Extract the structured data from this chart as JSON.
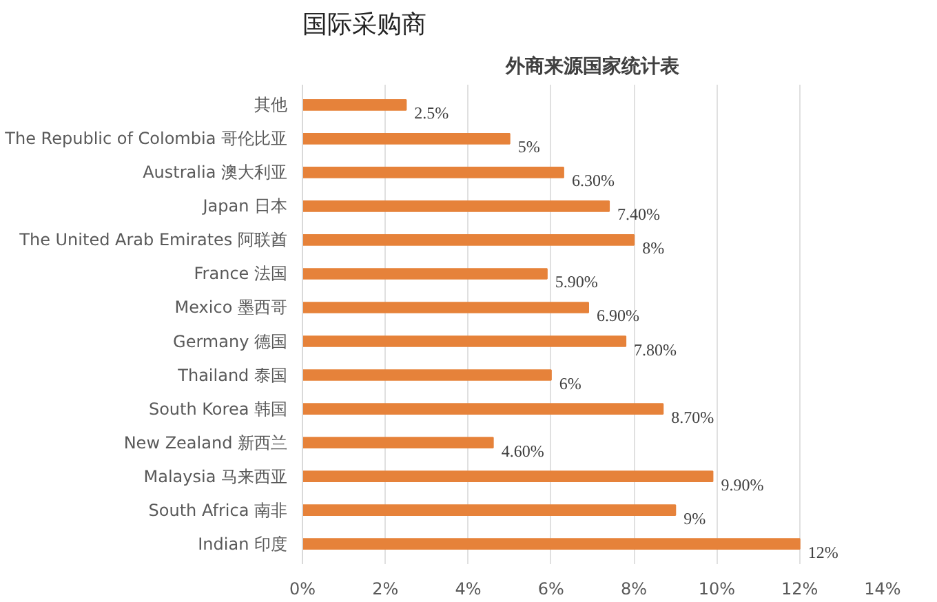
{
  "chart_data": {
    "type": "bar",
    "orientation": "horizontal",
    "title": "国际采购商",
    "subtitle": "外商来源国家统计表",
    "categories": [
      "其他",
      "The Republic of Colombia 哥伦比亚",
      "Australia 澳大利亚",
      "Japan 日本",
      "The United Arab Emirates 阿联酋",
      "France 法国",
      "Mexico 墨西哥",
      "Germany 德国",
      "Thailand 泰国",
      "South Korea 韩国",
      "New Zealand 新西兰",
      "Malaysia 马来西亚",
      "South Africa 南非",
      "Indian 印度"
    ],
    "values": [
      2.5,
      5,
      6.3,
      7.4,
      8,
      5.9,
      6.9,
      7.8,
      6,
      8.7,
      4.6,
      9.9,
      9,
      12
    ],
    "value_labels": [
      "2.5%",
      "5%",
      "6.30%",
      "7.40%",
      "8%",
      "5.90%",
      "6.90%",
      "7.80%",
      "6%",
      "8.70%",
      "4.60%",
      "9.90%",
      "9%",
      "12%"
    ],
    "color": "#e6823a",
    "xlim": [
      0,
      14
    ],
    "xticks": [
      {
        "value": 0,
        "label": "0%"
      },
      {
        "value": 2,
        "label": "2%"
      },
      {
        "value": 4,
        "label": "4%"
      },
      {
        "value": 6,
        "label": "6%"
      },
      {
        "value": 8,
        "label": "8%"
      },
      {
        "value": 10,
        "label": "10%"
      },
      {
        "value": 12,
        "label": "12%"
      },
      {
        "value": 14,
        "label": "14%"
      }
    ],
    "grid": "x"
  }
}
